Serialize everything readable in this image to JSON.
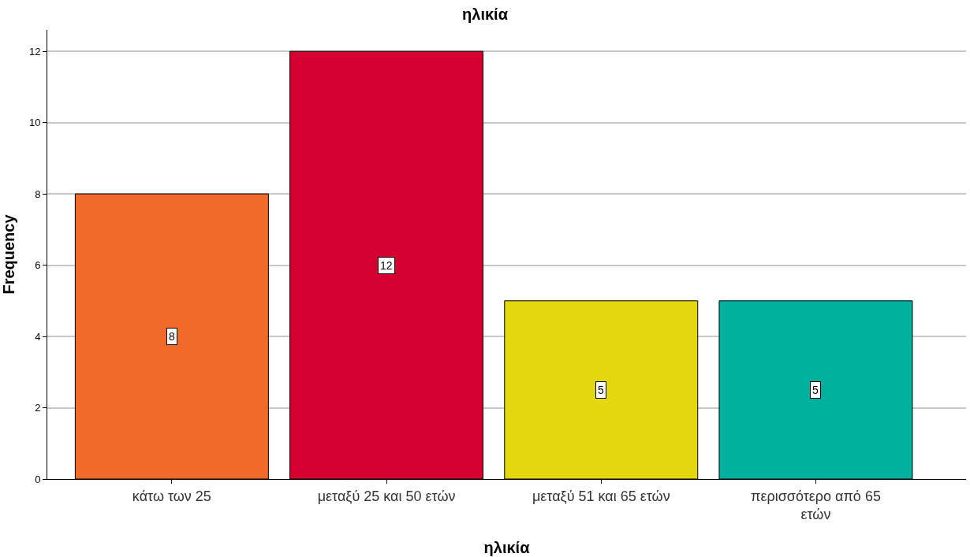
{
  "chart_data": {
    "type": "bar",
    "title": "ηλικία",
    "xlabel": "ηλικία",
    "ylabel": "Frequency",
    "categories": [
      "κάτω των 25",
      "μεταξύ 25 και 50 ετών",
      "μεταξύ 51 και 65 ετών",
      "περισσότερο από 65 ετών"
    ],
    "values": [
      8,
      12,
      5,
      5
    ],
    "colors": [
      "#f26a2a",
      "#d5002f",
      "#e3d70f",
      "#00b09e"
    ],
    "ylim": [
      0,
      12.6
    ],
    "yticks": [
      0,
      2,
      4,
      6,
      8,
      10,
      12
    ],
    "grid": "y",
    "data_labels": true
  }
}
